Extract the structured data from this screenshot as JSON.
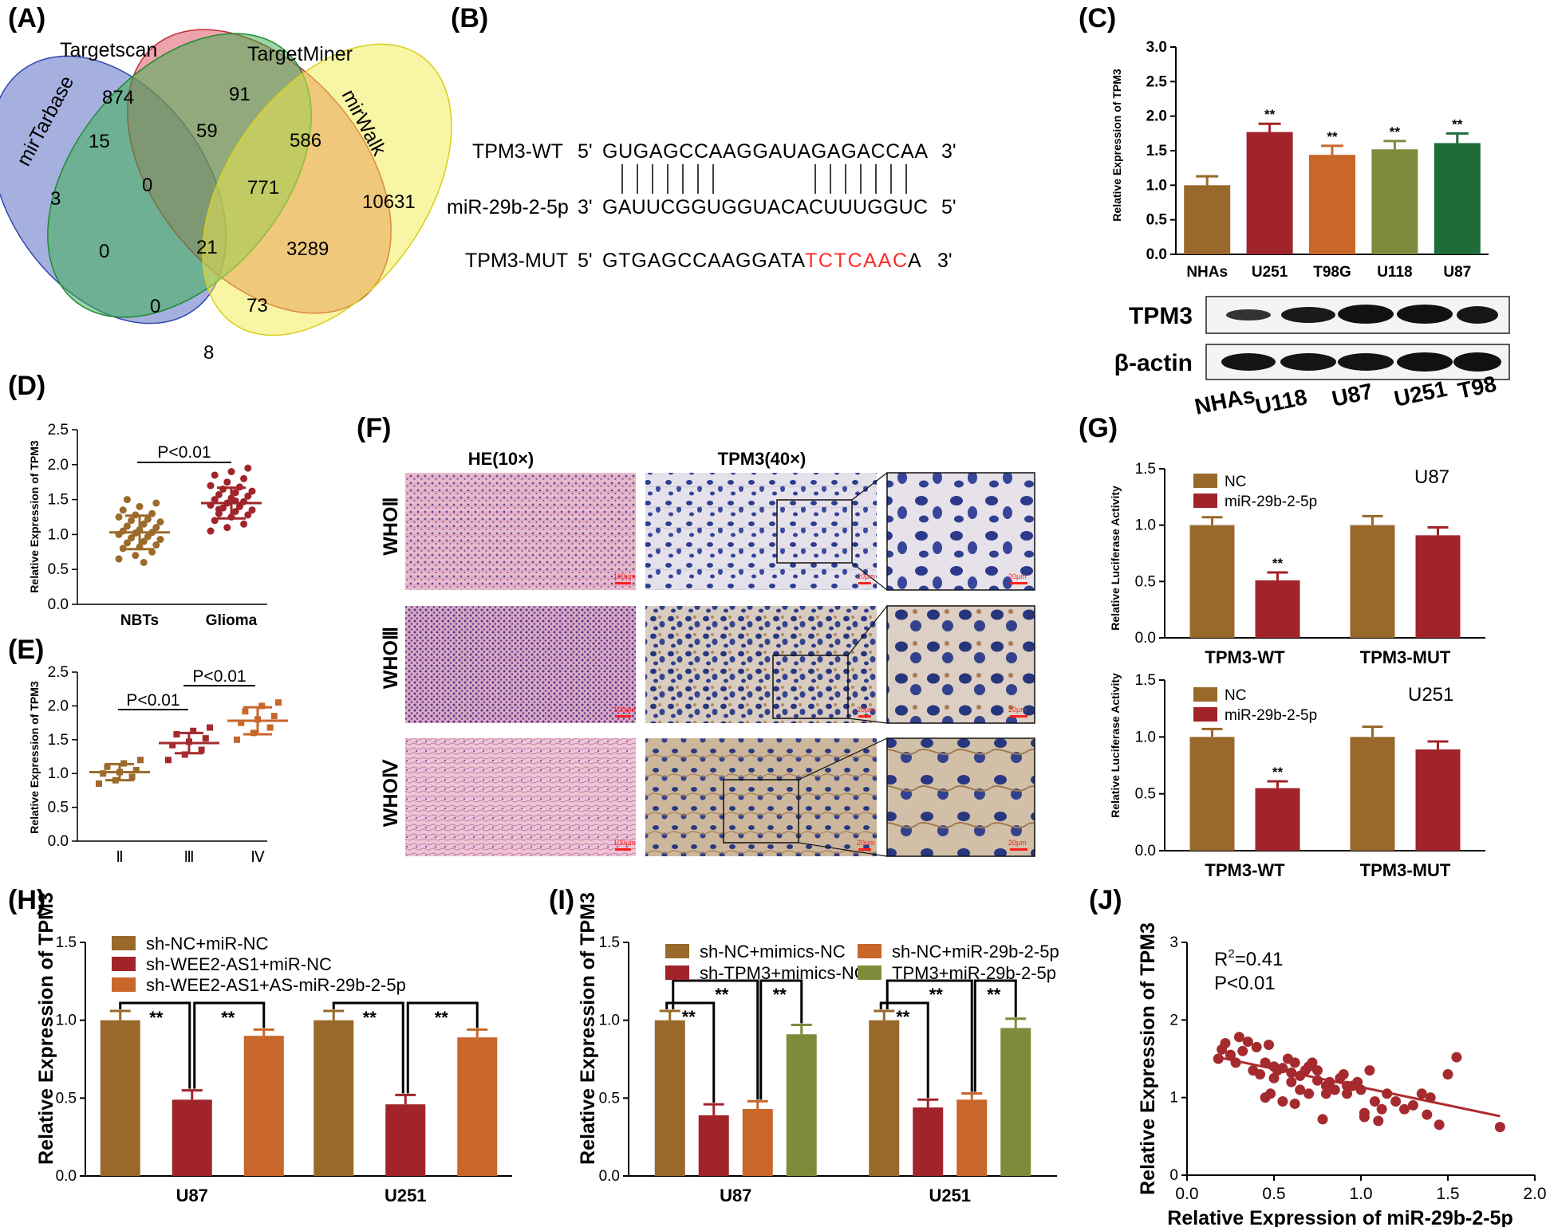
{
  "colors": {
    "brown": "#98692a",
    "red": "#a0242a",
    "orange": "#c9662a",
    "olive": "#7f8b3a",
    "green": "#1f6b3a",
    "maroon": "#a52a2e",
    "mutred": "#ff2a2a"
  },
  "chart_data": [
    {
      "panel": "A",
      "type": "venn",
      "sets": [
        "mirTarbase",
        "Targetscan",
        "TargetMiner",
        "mirWalk"
      ],
      "counts": [
        "874",
        "91",
        "15",
        "59",
        "586",
        "3",
        "0",
        "771",
        "10631",
        "0",
        "21",
        "3289",
        "0",
        "73",
        "8"
      ]
    },
    {
      "panel": "B",
      "type": "sequence_alignment",
      "rows": [
        {
          "name": "TPM3-WT",
          "p5": "5'",
          "seq": "GUGAGCCAAGGAUAGAGACCAA",
          "p3": "3'"
        },
        {
          "name": "miR-29b-2-5p",
          "p5": "3'",
          "seq": "GAUUCGGUGGUACACUUUGGUC",
          "p3": "5'"
        },
        {
          "name": "TPM3-MUT",
          "p5": "5'",
          "seq_black": "GTGAGCCAAGGATA",
          "seq_red": "TCTCAAC",
          "seq_tail": "A",
          "p3": "3'"
        }
      ]
    },
    {
      "panel": "C",
      "type": "bar",
      "categories": [
        "NHAs",
        "U251",
        "T98G",
        "U118",
        "U87"
      ],
      "values": [
        1.0,
        1.77,
        1.44,
        1.52,
        1.61
      ],
      "errors": [
        0.13,
        0.12,
        0.13,
        0.12,
        0.14
      ],
      "significance": [
        "",
        "**",
        "**",
        "**",
        "**"
      ],
      "ylabel": "Relative Expression of TPM3",
      "ylim": [
        0,
        3.0
      ],
      "yticks": [
        "0.0",
        "0.5",
        "1.0",
        "1.5",
        "2.0",
        "2.5",
        "3.0"
      ],
      "blot": {
        "bands": [
          "TPM3",
          "β-actin"
        ],
        "lanes": [
          "NHAs",
          "U118",
          "U87",
          "U251",
          "T98"
        ]
      }
    },
    {
      "panel": "D",
      "type": "scatter",
      "categories": [
        "NBTs",
        "Glioma"
      ],
      "NBTs": [
        0.65,
        0.7,
        0.75,
        0.8,
        0.82,
        0.85,
        0.88,
        0.9,
        0.93,
        0.95,
        0.97,
        1.0,
        1.02,
        1.03,
        1.05,
        1.07,
        1.1,
        1.12,
        1.15,
        1.18,
        1.2,
        1.22,
        1.25,
        1.28,
        1.3,
        1.35,
        1.4,
        1.45,
        1.5,
        0.6
      ],
      "Glioma": [
        1.05,
        1.1,
        1.15,
        1.2,
        1.25,
        1.28,
        1.3,
        1.33,
        1.35,
        1.38,
        1.4,
        1.42,
        1.45,
        1.47,
        1.5,
        1.52,
        1.55,
        1.57,
        1.6,
        1.62,
        1.65,
        1.68,
        1.7,
        1.75,
        1.8,
        1.85,
        1.9,
        1.95,
        1.36,
        1.48
      ],
      "mean": [
        1.03,
        1.45
      ],
      "sd": [
        0.24,
        0.22
      ],
      "annotation": "P<0.01",
      "ylabel": "Relative Expression of TPM3",
      "ylim": [
        0,
        2.5
      ],
      "yticks": [
        "0.0",
        "0.5",
        "1.0",
        "1.5",
        "2.0",
        "2.5"
      ]
    },
    {
      "panel": "E",
      "type": "scatter",
      "categories": [
        "Ⅱ",
        "Ⅲ",
        "Ⅳ"
      ],
      "groups": [
        [
          0.85,
          0.9,
          0.95,
          1.0,
          1.02,
          1.05,
          1.1,
          1.15,
          1.2
        ],
        [
          1.2,
          1.28,
          1.35,
          1.42,
          1.47,
          1.52,
          1.58,
          1.63,
          1.68
        ],
        [
          1.5,
          1.6,
          1.68,
          1.75,
          1.8,
          1.85,
          1.92,
          2.0,
          2.05
        ]
      ],
      "mean": [
        1.02,
        1.45,
        1.78
      ],
      "sd": [
        0.12,
        0.15,
        0.2
      ],
      "annotations": [
        "P<0.01",
        "P<0.01"
      ],
      "ylabel": "Relative Expression of TPM3",
      "ylim": [
        0,
        2.5
      ],
      "yticks": [
        "0.0",
        "0.5",
        "1.0",
        "1.5",
        "2.0",
        "2.5"
      ]
    },
    {
      "panel": "F",
      "type": "histology",
      "columns": [
        "HE(10×)",
        "TPM3(40×)"
      ],
      "rows": [
        "WHOⅡ",
        "WHOⅢ",
        "WHOⅣ"
      ],
      "scale_labels": [
        "100μm",
        "20μm",
        "20μm"
      ]
    },
    {
      "panel": "G",
      "type": "bar",
      "subtitle": "U87",
      "categories": [
        "TPM3-WT",
        "TPM3-MUT"
      ],
      "series": [
        {
          "name": "NC",
          "values": [
            1.0,
            1.0
          ],
          "errors": [
            0.07,
            0.08
          ]
        },
        {
          "name": "miR-29b-2-5p",
          "values": [
            0.51,
            0.91
          ],
          "errors": [
            0.07,
            0.07
          ]
        }
      ],
      "significance": "**",
      "ylabel": "Relative Luciferase Activity",
      "ylim": [
        0,
        1.5
      ],
      "yticks": [
        "0.0",
        "0.5",
        "1.0",
        "1.5"
      ]
    },
    {
      "panel": "G",
      "type": "bar",
      "subtitle": "U251",
      "categories": [
        "TPM3-WT",
        "TPM3-MUT"
      ],
      "series": [
        {
          "name": "NC",
          "values": [
            1.0,
            1.0
          ],
          "errors": [
            0.07,
            0.09
          ]
        },
        {
          "name": "miR-29b-2-5p",
          "values": [
            0.55,
            0.89
          ],
          "errors": [
            0.06,
            0.07
          ]
        }
      ],
      "significance": "**",
      "ylabel": "Relative Luciferase Activity",
      "ylim": [
        0,
        1.5
      ],
      "yticks": [
        "0.0",
        "0.5",
        "1.0",
        "1.5"
      ]
    },
    {
      "panel": "H",
      "type": "bar",
      "categories": [
        "U87",
        "U251"
      ],
      "series": [
        {
          "name": "sh-NC+miR-NC",
          "values": [
            1.0,
            1.0
          ],
          "errors": [
            0.06,
            0.06
          ]
        },
        {
          "name": "sh-WEE2-AS1+miR-NC",
          "values": [
            0.49,
            0.46
          ],
          "errors": [
            0.06,
            0.06
          ]
        },
        {
          "name": "sh-WEE2-AS1+AS-miR-29b-2-5p",
          "values": [
            0.9,
            0.89
          ],
          "errors": [
            0.04,
            0.05
          ]
        }
      ],
      "significance": "**",
      "ylabel": "Relative Expression of TPM3",
      "ylim": [
        0,
        1.5
      ],
      "yticks": [
        "0.0",
        "0.5",
        "1.0",
        "1.5"
      ]
    },
    {
      "panel": "I",
      "type": "bar",
      "categories": [
        "U87",
        "U251"
      ],
      "series": [
        {
          "name": "sh-NC+mimics-NC",
          "values": [
            1.0,
            1.0
          ],
          "errors": [
            0.06,
            0.06
          ]
        },
        {
          "name": "sh-TPM3+mimics-NC",
          "values": [
            0.39,
            0.44
          ],
          "errors": [
            0.07,
            0.05
          ]
        },
        {
          "name": "sh-NC+miR-29b-2-5p",
          "values": [
            0.43,
            0.49
          ],
          "errors": [
            0.05,
            0.04
          ]
        },
        {
          "name": "TPM3+miR-29b-2-5p",
          "values": [
            0.91,
            0.95
          ],
          "errors": [
            0.06,
            0.06
          ]
        }
      ],
      "significance": "**",
      "ylabel": "Relative Expression of TPM3",
      "ylim": [
        0,
        1.5
      ],
      "yticks": [
        "0.0",
        "0.5",
        "1.0",
        "1.5"
      ]
    },
    {
      "panel": "J",
      "type": "scatter",
      "x": [
        0.18,
        0.2,
        0.22,
        0.25,
        0.28,
        0.3,
        0.32,
        0.35,
        0.38,
        0.4,
        0.42,
        0.45,
        0.47,
        0.5,
        0.5,
        0.52,
        0.55,
        0.55,
        0.58,
        0.6,
        0.6,
        0.62,
        0.65,
        0.65,
        0.68,
        0.7,
        0.7,
        0.72,
        0.75,
        0.75,
        0.78,
        0.8,
        0.8,
        0.82,
        0.85,
        0.88,
        0.9,
        0.92,
        0.95,
        0.98,
        1.0,
        1.02,
        1.05,
        1.08,
        1.1,
        1.15,
        1.2,
        1.25,
        1.3,
        1.35,
        1.38,
        1.4,
        1.45,
        1.5,
        1.55,
        1.8,
        0.45,
        0.48,
        0.62,
        0.92,
        1.02,
        1.12
      ],
      "y": [
        1.5,
        1.62,
        1.7,
        1.55,
        1.45,
        1.78,
        1.6,
        1.72,
        1.35,
        1.65,
        1.3,
        1.45,
        1.68,
        1.25,
        1.4,
        1.35,
        0.95,
        1.38,
        1.5,
        1.2,
        1.32,
        1.45,
        1.1,
        1.28,
        1.35,
        1.4,
        1.05,
        1.45,
        1.22,
        1.35,
        0.72,
        1.05,
        1.15,
        1.2,
        1.1,
        1.25,
        1.3,
        1.05,
        1.15,
        1.2,
        1.1,
        0.75,
        1.35,
        0.95,
        0.7,
        1.05,
        0.95,
        0.85,
        0.9,
        1.05,
        0.78,
        1.0,
        0.65,
        1.3,
        1.52,
        0.62,
        1.0,
        1.05,
        0.92,
        1.15,
        0.8,
        0.85
      ],
      "fit": {
        "x0": 0.18,
        "y0": 1.52,
        "x1": 1.8,
        "y1": 0.76
      },
      "r2_prefix": "R",
      "r2_sup": "2",
      "r2_value": "=0.41",
      "p": "P<0.01",
      "xlabel": "Relative Expression of miR-29b-2-5p",
      "ylabel": "Relative Expression of TPM3",
      "xlim": [
        0,
        2.0
      ],
      "ylim": [
        0,
        3
      ],
      "xticks": [
        "0.0",
        "0.5",
        "1.0",
        "1.5",
        "2.0"
      ],
      "yticks": [
        "0",
        "1",
        "2",
        "3"
      ]
    }
  ]
}
